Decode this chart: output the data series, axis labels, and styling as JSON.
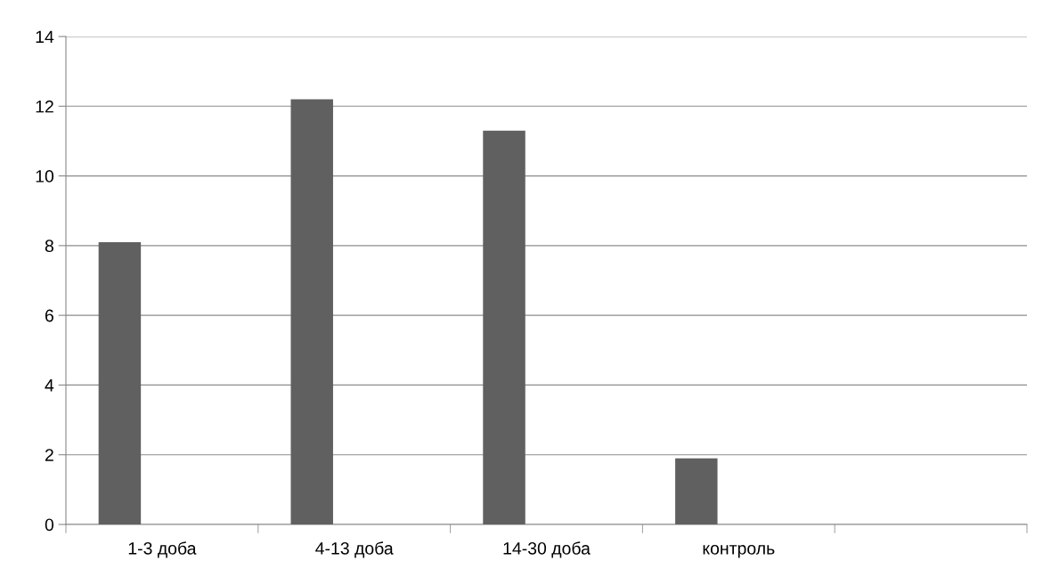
{
  "chart_data": {
    "type": "bar",
    "categories": [
      "1-3 доба",
      "4-13 доба",
      "14-30 доба",
      "контроль",
      null
    ],
    "values": [
      8.1,
      12.2,
      11.3,
      1.9,
      null
    ],
    "color": "#606060",
    "ylim": [
      0,
      14
    ],
    "yticks": [
      0,
      2,
      4,
      6,
      8,
      10,
      12,
      14
    ],
    "grid": "y",
    "legend": false
  }
}
